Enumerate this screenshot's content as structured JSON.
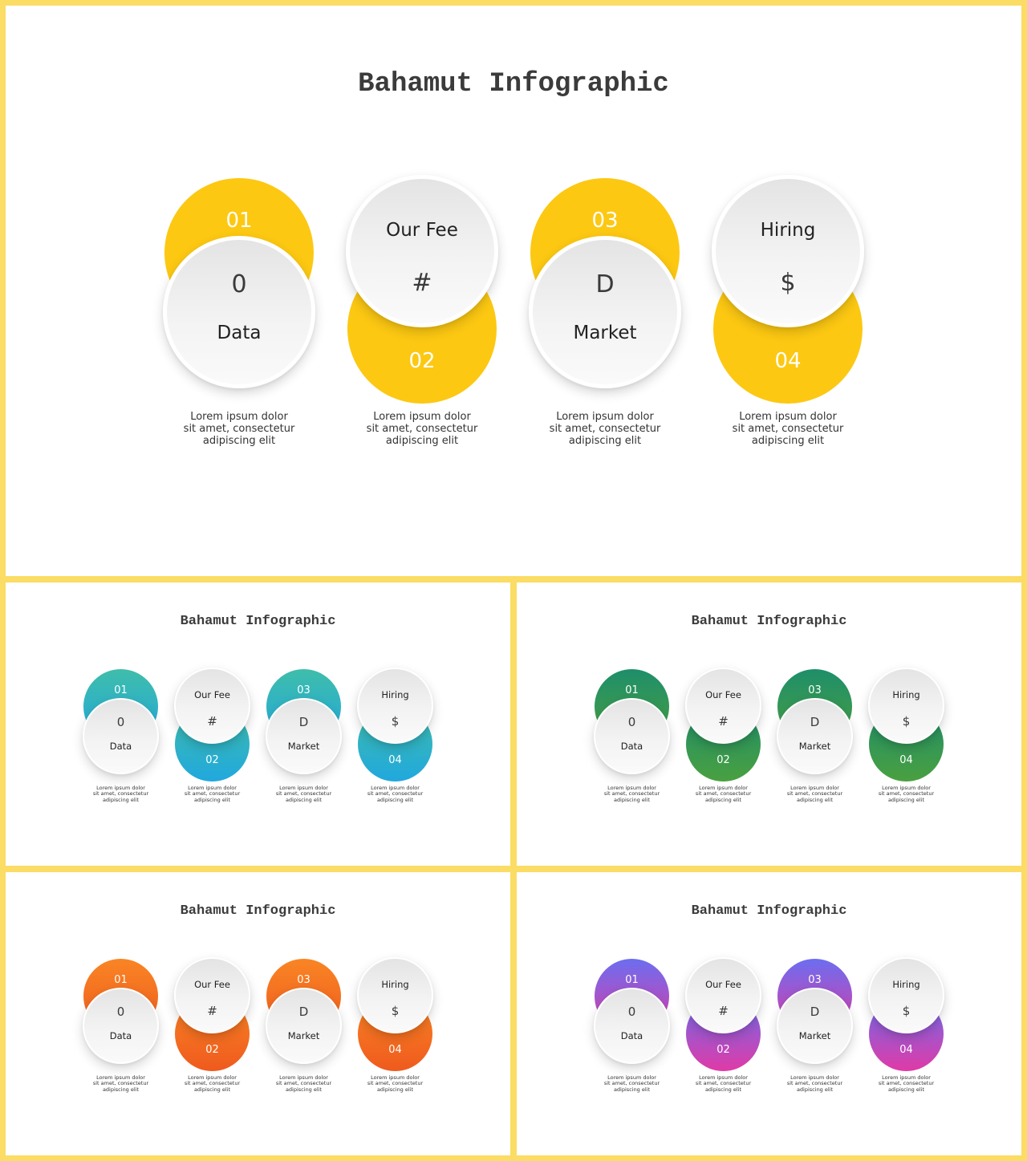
{
  "title": "Bahamut Infographic",
  "items": [
    {
      "number": "01",
      "symbol": "0",
      "label": "Data",
      "desc": [
        "Lorem ipsum dolor",
        "sit amet, consectetur",
        "adipiscing elit"
      ]
    },
    {
      "number": "02",
      "symbol": "#",
      "label": "Our Fee",
      "desc": [
        "Lorem ipsum dolor",
        "sit amet, consectetur",
        "adipiscing elit"
      ]
    },
    {
      "number": "03",
      "symbol": "D",
      "label": "Market",
      "desc": [
        "Lorem ipsum dolor",
        "sit amet, consectetur",
        "adipiscing elit"
      ]
    },
    {
      "number": "04",
      "symbol": "$",
      "label": "Hiring",
      "desc": [
        "Lorem ipsum dolor",
        "sit amet, consectetur",
        "adipiscing elit"
      ]
    }
  ],
  "themes": [
    {
      "name": "yellow",
      "top": "#fcc812",
      "bottom": "#fcc812"
    },
    {
      "name": "teal-blue",
      "top": "#3fbdaa",
      "bottom": "#21a8de"
    },
    {
      "name": "green",
      "top": "#1e8e6a",
      "bottom": "#4aa040"
    },
    {
      "name": "orange",
      "top": "#f98524",
      "bottom": "#ef5a1e"
    },
    {
      "name": "purple-pink",
      "top": "#6b6ef0",
      "bottom": "#e03aa6"
    }
  ]
}
